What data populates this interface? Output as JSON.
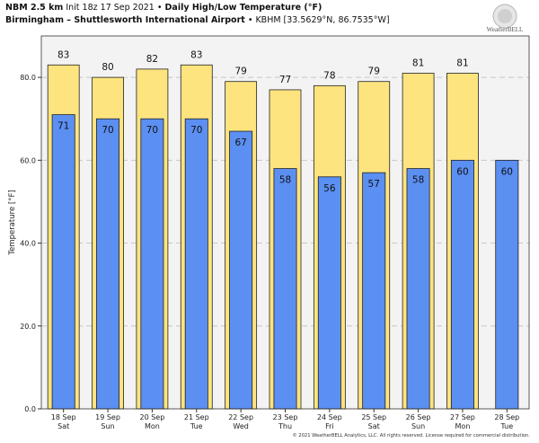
{
  "header": {
    "model": "NBM 2.5 km",
    "init": "Init 18z 17 Sep 2021",
    "bullet": "•",
    "title": "Daily High/Low Temperature (°F)",
    "station": "Birmingham – Shuttlesworth International Airport",
    "station_id": "• KBHM [33.5629°N, 86.7535°W]"
  },
  "logo": {
    "text": "WeatherBELL"
  },
  "footer": {
    "copyright": "© 2021 WeatherBELL Analytics, LLC. All rights reserved. License required for commercial distribution."
  },
  "colors": {
    "high": "#fde47f",
    "low": "#5b8ff2",
    "plot_bg": "#f3f3f3",
    "outline": "#222222"
  },
  "chart_data": {
    "type": "bar",
    "ylabel": "Temperature [°F]",
    "ylim": [
      0,
      90
    ],
    "yticks": [
      "0.0",
      "20.0",
      "40.0",
      "60.0",
      "80.0"
    ],
    "grid": true,
    "categories": [
      [
        "18 Sep",
        "Sat"
      ],
      [
        "19 Sep",
        "Sun"
      ],
      [
        "20 Sep",
        "Mon"
      ],
      [
        "21 Sep",
        "Tue"
      ],
      [
        "22 Sep",
        "Wed"
      ],
      [
        "23 Sep",
        "Thu"
      ],
      [
        "24 Sep",
        "Fri"
      ],
      [
        "25 Sep",
        "Sat"
      ],
      [
        "26 Sep",
        "Sun"
      ],
      [
        "27 Sep",
        "Mon"
      ],
      [
        "28 Sep",
        "Tue"
      ]
    ],
    "series": [
      {
        "values": [
          83,
          80,
          82,
          83,
          79,
          77,
          78,
          79,
          81,
          81,
          null
        ]
      },
      {
        "values": [
          71,
          70,
          70,
          70,
          67,
          58,
          56,
          57,
          58,
          60,
          60
        ]
      }
    ],
    "value_labels": {
      "high": [
        "83",
        "80",
        "82",
        "83",
        "79",
        "77",
        "78",
        "79",
        "81",
        "81",
        null
      ],
      "low": [
        "71",
        "70",
        "70",
        "70",
        "67",
        "58",
        "56",
        "57",
        "58",
        "60",
        "60"
      ]
    }
  }
}
